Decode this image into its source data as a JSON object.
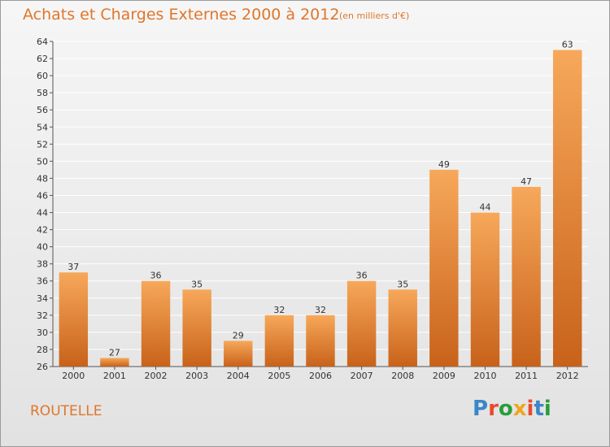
{
  "header": {
    "title": "Achats et Charges Externes 2000 à 2012",
    "subtitle": "(en milliers d'€)"
  },
  "footer": {
    "place": "ROUTELLE",
    "brand": "Proxiti",
    "brand_colors": [
      "#3a86c8",
      "#e84a2e",
      "#2a9d3a",
      "#f0a51c",
      "#e84a2e",
      "#3a86c8",
      "#2a9d3a"
    ]
  },
  "colors": {
    "bar_top": "#f7a85a",
    "bar_bottom": "#c8621a",
    "accent": "#e0762a",
    "grid": "#ffffff"
  },
  "chart_data": {
    "type": "bar",
    "categories": [
      "2000",
      "2001",
      "2002",
      "2003",
      "2004",
      "2005",
      "2006",
      "2007",
      "2008",
      "2009",
      "2010",
      "2011",
      "2012"
    ],
    "values": [
      37,
      27,
      36,
      35,
      29,
      32,
      32,
      36,
      35,
      49,
      44,
      47,
      63
    ],
    "ylim": [
      26,
      64
    ],
    "ytick_step": 2,
    "grid": true
  }
}
